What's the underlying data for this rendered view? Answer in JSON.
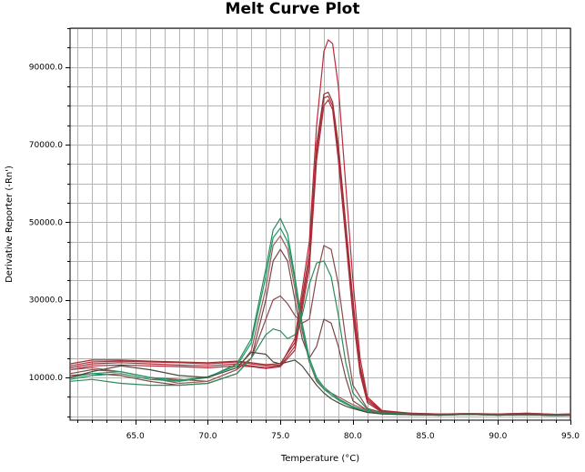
{
  "chart_data": {
    "type": "line",
    "title": "Melt Curve Plot",
    "xlabel": "Temperature (°C)",
    "ylabel": "Derivative Reporter (-Rn')",
    "xlim": [
      60.5,
      95.0
    ],
    "ylim": [
      -1000,
      100000
    ],
    "x_ticks": [
      65.0,
      70.0,
      75.0,
      80.0,
      85.0,
      90.0,
      95.0
    ],
    "x_tick_labels": [
      "65.0",
      "70.0",
      "75.0",
      "80.0",
      "85.0",
      "90.0",
      "95.0"
    ],
    "y_ticks": [
      10000,
      30000,
      50000,
      70000,
      90000
    ],
    "y_tick_labels": [
      "10000.0",
      "30000.0",
      "50000.0",
      "70000.0",
      "90000.0"
    ],
    "grid": true,
    "colors": {
      "red": "#b3283a",
      "maroon": "#8c3a3a",
      "brown": "#8a5050",
      "green": "#2e8b57",
      "teal": "#1f9466",
      "dark": "#4a4a3a"
    },
    "series": [
      {
        "color": "#c0283c",
        "x": [
          60.5,
          62,
          64,
          66,
          68,
          70,
          72,
          73,
          74,
          75,
          76,
          77,
          77.5,
          78,
          78.3,
          78.6,
          79,
          79.5,
          80,
          80.5,
          81,
          82,
          84,
          86,
          88,
          90,
          92,
          94,
          95
        ],
        "y": [
          13000,
          14000,
          14200,
          14000,
          13800,
          13500,
          14000,
          13500,
          13000,
          13200,
          20000,
          45000,
          75000,
          94000,
          97000,
          96000,
          85000,
          60000,
          35000,
          15000,
          5000,
          1500,
          800,
          600,
          700,
          600,
          800,
          500,
          600
        ]
      },
      {
        "color": "#a8303a",
        "x": [
          60.5,
          62,
          64,
          66,
          68,
          70,
          72,
          73,
          74,
          75,
          76,
          77,
          77.5,
          78,
          78.3,
          78.6,
          79,
          79.5,
          80,
          80.5,
          81,
          82,
          84,
          86,
          88,
          90,
          92,
          94,
          95
        ],
        "y": [
          12500,
          13500,
          13800,
          13500,
          13200,
          13000,
          13500,
          13000,
          12500,
          13000,
          18000,
          40000,
          68000,
          82000,
          82500,
          80000,
          68000,
          48000,
          28000,
          12000,
          4000,
          1200,
          700,
          500,
          600,
          500,
          700,
          400,
          500
        ]
      },
      {
        "color": "#b02a3a",
        "x": [
          60.5,
          62,
          64,
          66,
          68,
          70,
          72,
          73,
          74,
          75,
          76,
          77,
          77.5,
          78,
          78.3,
          78.6,
          79,
          79.5,
          80,
          80.5,
          81,
          82,
          84,
          86,
          88,
          90,
          92,
          94,
          95
        ],
        "y": [
          12000,
          13000,
          13200,
          13000,
          12800,
          12500,
          13000,
          12800,
          12300,
          12800,
          17000,
          38000,
          66000,
          80000,
          81500,
          79000,
          66000,
          46000,
          26000,
          11000,
          3500,
          1000,
          600,
          500,
          600,
          500,
          600,
          400,
          500
        ]
      },
      {
        "color": "#993333",
        "x": [
          60.5,
          62,
          64,
          66,
          68,
          70,
          72,
          73,
          74,
          75,
          76,
          77,
          77.5,
          78,
          78.3,
          78.6,
          79,
          79.5,
          80,
          80.5,
          81,
          82,
          84,
          86,
          88,
          90,
          92,
          94,
          95
        ],
        "y": [
          13500,
          14500,
          14500,
          14200,
          14000,
          13800,
          14200,
          13800,
          13300,
          13600,
          19000,
          42000,
          70000,
          83000,
          83500,
          81000,
          70000,
          50000,
          30000,
          13000,
          4500,
          1300,
          800,
          600,
          700,
          600,
          800,
          500,
          600
        ]
      },
      {
        "color": "#8a4a4a",
        "x": [
          60.5,
          62,
          64,
          66,
          68,
          70,
          72,
          73,
          74,
          74.5,
          75,
          75.5,
          76,
          76.5,
          77,
          77.5,
          78,
          78.5,
          79,
          79.5,
          80,
          81,
          82,
          84,
          86,
          88,
          90,
          92,
          94,
          95
        ],
        "y": [
          11000,
          12000,
          11500,
          10000,
          9500,
          9000,
          12000,
          15000,
          25000,
          30000,
          31000,
          29000,
          26000,
          24000,
          25000,
          36000,
          44000,
          43000,
          34000,
          20000,
          8000,
          2000,
          1000,
          600,
          500,
          700,
          500,
          600,
          400,
          500
        ]
      },
      {
        "color": "#7a4545",
        "x": [
          60.5,
          62,
          64,
          66,
          68,
          70,
          72,
          73,
          74,
          74.5,
          75,
          75.5,
          76,
          76.5,
          77,
          77.5,
          78,
          78.5,
          79,
          79.5,
          80,
          81,
          82,
          84,
          86,
          88,
          90,
          92,
          94,
          95
        ],
        "y": [
          10500,
          11000,
          10500,
          9000,
          8000,
          8500,
          11000,
          15000,
          30000,
          40000,
          43000,
          40000,
          30000,
          20000,
          15000,
          18000,
          25000,
          24000,
          18000,
          10000,
          4000,
          1500,
          800,
          500,
          400,
          600,
          400,
          500,
          300,
          400
        ]
      },
      {
        "color": "#9a5a5a",
        "x": [
          60.5,
          62,
          64,
          66,
          68,
          70,
          72,
          73,
          74,
          74.5,
          75,
          75.5,
          76,
          76.5,
          77,
          77.5,
          78,
          78.5,
          79,
          79.5,
          80,
          81,
          82,
          84,
          86,
          88,
          90,
          92,
          94,
          95
        ],
        "y": [
          12000,
          12500,
          11500,
          10000,
          8500,
          9000,
          12000,
          17000,
          33000,
          44000,
          46500,
          43000,
          33000,
          22000,
          14000,
          9000,
          7000,
          6000,
          5000,
          4000,
          3000,
          1500,
          800,
          500,
          400,
          600,
          400,
          500,
          300,
          400
        ]
      },
      {
        "color": "#2a8a5a",
        "x": [
          60.5,
          62,
          64,
          66,
          68,
          70,
          72,
          73,
          74,
          74.5,
          75,
          75.5,
          76,
          76.5,
          77,
          77.5,
          78,
          78.5,
          79,
          79.5,
          80,
          81,
          82,
          84,
          86,
          88,
          90,
          92,
          94,
          95
        ],
        "y": [
          9500,
          10500,
          11000,
          9500,
          9000,
          10000,
          13500,
          20000,
          38000,
          48000,
          51000,
          47000,
          36000,
          24000,
          15000,
          10000,
          7500,
          6000,
          4500,
          3500,
          2500,
          1200,
          700,
          400,
          300,
          500,
          300,
          400,
          200,
          300
        ]
      },
      {
        "color": "#1e9a6a",
        "x": [
          60.5,
          62,
          64,
          66,
          68,
          70,
          72,
          73,
          74,
          74.5,
          75,
          75.5,
          76,
          76.5,
          77,
          77.5,
          78,
          78.5,
          79,
          79.5,
          80,
          81,
          82,
          84,
          86,
          88,
          90,
          92,
          94,
          95
        ],
        "y": [
          10000,
          11000,
          11500,
          10000,
          9200,
          10200,
          13000,
          19000,
          36000,
          46000,
          48500,
          45000,
          35000,
          23000,
          14000,
          9500,
          7000,
          5500,
          4200,
          3200,
          2300,
          1100,
          600,
          400,
          300,
          500,
          300,
          400,
          200,
          300
        ]
      },
      {
        "color": "#2e8b57",
        "x": [
          60.5,
          62,
          64,
          66,
          68,
          70,
          72,
          73,
          74,
          74.5,
          75,
          75.5,
          76,
          76.5,
          77,
          77.5,
          78,
          78.5,
          79,
          79.5,
          80,
          81,
          82,
          84,
          86,
          88,
          90,
          92,
          94,
          95
        ],
        "y": [
          9000,
          9500,
          8500,
          8000,
          8000,
          8500,
          11000,
          15000,
          21000,
          22500,
          22000,
          20000,
          21000,
          26000,
          34000,
          39500,
          40000,
          36000,
          26000,
          14000,
          6000,
          1800,
          900,
          500,
          400,
          600,
          400,
          500,
          300,
          400
        ]
      },
      {
        "color": "#4a4a3a",
        "x": [
          60.5,
          62,
          64,
          66,
          68,
          70,
          72,
          73,
          74,
          74.5,
          75,
          75.5,
          76,
          76.5,
          77,
          77.5,
          78,
          78.5,
          79,
          79.5,
          80,
          81,
          82,
          84,
          86,
          88,
          90,
          92,
          94,
          95
        ],
        "y": [
          10000,
          11500,
          13000,
          12000,
          10500,
          10000,
          12500,
          16500,
          16000,
          14000,
          13500,
          14000,
          14500,
          13000,
          10500,
          8000,
          6000,
          4500,
          3500,
          2600,
          2000,
          1000,
          600,
          400,
          300,
          500,
          300,
          400,
          200,
          300
        ]
      }
    ]
  }
}
